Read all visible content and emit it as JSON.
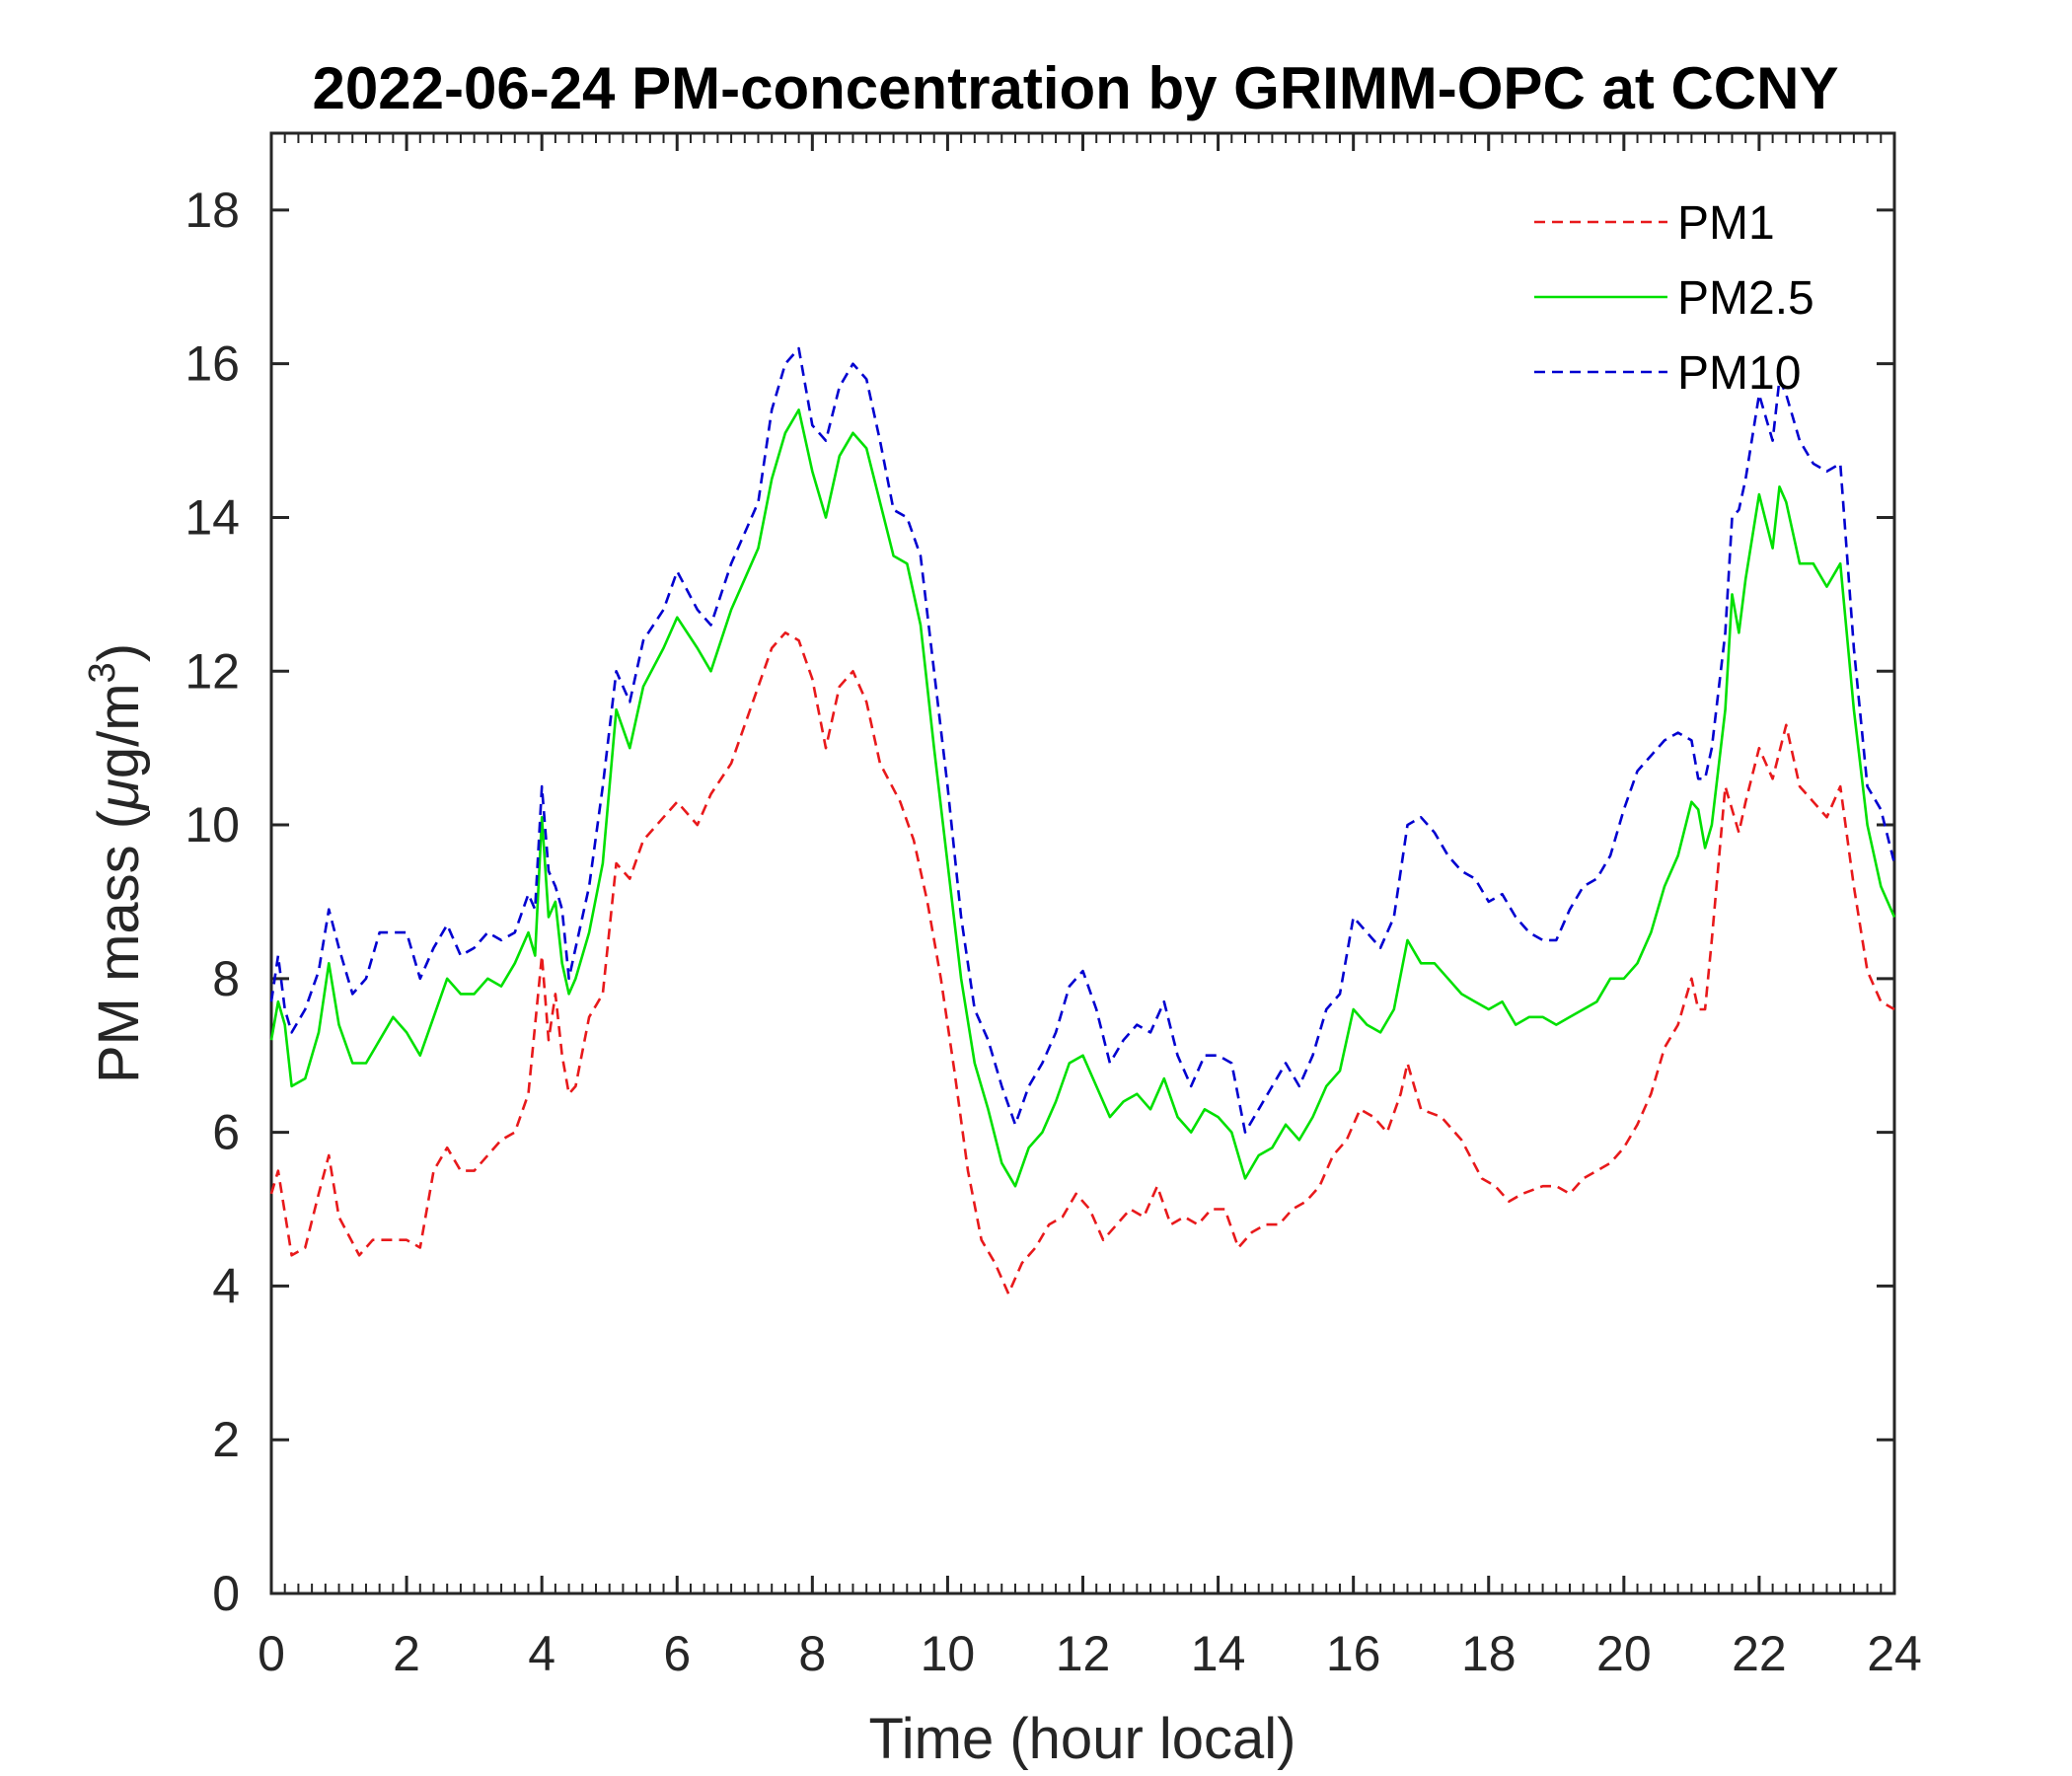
{
  "chart_data": {
    "type": "line",
    "title": "2022-06-24 PM-concentration by GRIMM-OPC at CCNY",
    "xlabel": "Time (hour local)",
    "ylabel_prefix": "PM mass (",
    "ylabel_mu": "μ",
    "ylabel_unit": "g/m",
    "ylabel_sup": "3",
    "ylabel_suffix": ")",
    "xlim": [
      0,
      24
    ],
    "ylim": [
      0,
      19
    ],
    "xticks": [
      0,
      2,
      4,
      6,
      8,
      10,
      12,
      14,
      16,
      18,
      20,
      22,
      24
    ],
    "yticks": [
      0,
      2,
      4,
      6,
      8,
      10,
      12,
      14,
      16,
      18
    ],
    "legend_position": "top-right",
    "series": [
      {
        "name": "PM1",
        "color": "#e8191b",
        "dash": "dashed",
        "x": [
          0,
          0.1,
          0.3,
          0.5,
          0.7,
          0.85,
          1.0,
          1.3,
          1.5,
          1.8,
          2.0,
          2.2,
          2.4,
          2.6,
          2.8,
          3.0,
          3.2,
          3.4,
          3.6,
          3.8,
          4.0,
          4.1,
          4.2,
          4.3,
          4.4,
          4.5,
          4.7,
          4.9,
          5.1,
          5.3,
          5.5,
          5.8,
          6.0,
          6.3,
          6.5,
          6.8,
          7.0,
          7.2,
          7.4,
          7.6,
          7.8,
          8.0,
          8.2,
          8.4,
          8.6,
          8.8,
          9.0,
          9.3,
          9.5,
          9.7,
          9.9,
          10.1,
          10.3,
          10.5,
          10.7,
          10.9,
          11.1,
          11.3,
          11.5,
          11.7,
          11.9,
          12.1,
          12.3,
          12.5,
          12.7,
          12.9,
          13.1,
          13.3,
          13.5,
          13.7,
          13.9,
          14.1,
          14.3,
          14.5,
          14.7,
          14.9,
          15.1,
          15.3,
          15.5,
          15.7,
          15.9,
          16.1,
          16.3,
          16.5,
          16.7,
          16.8,
          17.0,
          17.3,
          17.6,
          17.9,
          18.1,
          18.3,
          18.5,
          18.8,
          19.0,
          19.2,
          19.4,
          19.6,
          19.8,
          20.0,
          20.2,
          20.4,
          20.6,
          20.8,
          21.0,
          21.1,
          21.2,
          21.3,
          21.5,
          21.7,
          21.8,
          22.0,
          22.2,
          22.4,
          22.6,
          22.8,
          23.0,
          23.2,
          23.4,
          23.6,
          23.8,
          24.0
        ],
        "values": [
          5.2,
          5.5,
          4.4,
          4.5,
          5.2,
          5.7,
          4.9,
          4.4,
          4.6,
          4.6,
          4.6,
          4.5,
          5.5,
          5.8,
          5.5,
          5.5,
          5.7,
          5.9,
          6.0,
          6.5,
          8.3,
          7.2,
          7.8,
          7.0,
          6.5,
          6.6,
          7.5,
          7.8,
          9.5,
          9.3,
          9.8,
          10.1,
          10.3,
          10.0,
          10.4,
          10.8,
          11.3,
          11.8,
          12.3,
          12.5,
          12.4,
          11.9,
          11.0,
          11.8,
          12.0,
          11.6,
          10.8,
          10.3,
          9.8,
          9.0,
          8.0,
          6.8,
          5.5,
          4.6,
          4.3,
          3.9,
          4.3,
          4.5,
          4.8,
          4.9,
          5.2,
          5.0,
          4.6,
          4.8,
          5.0,
          4.9,
          5.3,
          4.8,
          4.9,
          4.8,
          5.0,
          5.0,
          4.5,
          4.7,
          4.8,
          4.8,
          5.0,
          5.1,
          5.3,
          5.7,
          5.9,
          6.3,
          6.2,
          6.0,
          6.5,
          6.9,
          6.3,
          6.2,
          5.9,
          5.4,
          5.3,
          5.1,
          5.2,
          5.3,
          5.3,
          5.2,
          5.4,
          5.5,
          5.6,
          5.8,
          6.1,
          6.5,
          7.1,
          7.4,
          8.0,
          7.6,
          7.6,
          8.5,
          10.5,
          9.9,
          10.3,
          11.0,
          10.6,
          11.3,
          10.5,
          10.3,
          10.1,
          10.5,
          9.2,
          8.1,
          7.7,
          7.6
        ]
      },
      {
        "name": "PM2.5",
        "color": "#00e000",
        "dash": "solid",
        "x": [
          0,
          0.1,
          0.2,
          0.3,
          0.5,
          0.7,
          0.85,
          1.0,
          1.2,
          1.4,
          1.6,
          1.8,
          2.0,
          2.2,
          2.4,
          2.6,
          2.8,
          3.0,
          3.2,
          3.4,
          3.6,
          3.8,
          3.9,
          4.0,
          4.1,
          4.2,
          4.3,
          4.4,
          4.5,
          4.7,
          4.9,
          5.1,
          5.3,
          5.5,
          5.8,
          6.0,
          6.3,
          6.5,
          6.8,
          7.0,
          7.2,
          7.4,
          7.6,
          7.8,
          8.0,
          8.2,
          8.4,
          8.6,
          8.8,
          9.0,
          9.2,
          9.4,
          9.6,
          9.8,
          10.0,
          10.2,
          10.4,
          10.6,
          10.8,
          11.0,
          11.2,
          11.4,
          11.6,
          11.8,
          12.0,
          12.2,
          12.4,
          12.6,
          12.8,
          13.0,
          13.2,
          13.4,
          13.6,
          13.8,
          14.0,
          14.2,
          14.4,
          14.6,
          14.8,
          15.0,
          15.2,
          15.4,
          15.6,
          15.8,
          16.0,
          16.2,
          16.4,
          16.6,
          16.8,
          17.0,
          17.2,
          17.4,
          17.6,
          17.8,
          18.0,
          18.2,
          18.4,
          18.6,
          18.8,
          19.0,
          19.2,
          19.4,
          19.6,
          19.8,
          20.0,
          20.2,
          20.4,
          20.6,
          20.8,
          21.0,
          21.1,
          21.2,
          21.3,
          21.5,
          21.6,
          21.7,
          21.8,
          22.0,
          22.2,
          22.3,
          22.4,
          22.6,
          22.8,
          23.0,
          23.2,
          23.4,
          23.6,
          23.8,
          24.0
        ],
        "values": [
          7.2,
          7.7,
          7.4,
          6.6,
          6.7,
          7.3,
          8.2,
          7.4,
          6.9,
          6.9,
          7.2,
          7.5,
          7.3,
          7.0,
          7.5,
          8.0,
          7.8,
          7.8,
          8.0,
          7.9,
          8.2,
          8.6,
          8.3,
          10.1,
          8.8,
          9.0,
          8.2,
          7.8,
          8.0,
          8.6,
          9.5,
          11.5,
          11.0,
          11.8,
          12.3,
          12.7,
          12.3,
          12.0,
          12.8,
          13.2,
          13.6,
          14.5,
          15.1,
          15.4,
          14.6,
          14.0,
          14.8,
          15.1,
          14.9,
          14.2,
          13.5,
          13.4,
          12.6,
          11.0,
          9.5,
          8.0,
          6.9,
          6.3,
          5.6,
          5.3,
          5.8,
          6.0,
          6.4,
          6.9,
          7.0,
          6.6,
          6.2,
          6.4,
          6.5,
          6.3,
          6.7,
          6.2,
          6.0,
          6.3,
          6.2,
          6.0,
          5.4,
          5.7,
          5.8,
          6.1,
          5.9,
          6.2,
          6.6,
          6.8,
          7.6,
          7.4,
          7.3,
          7.6,
          8.5,
          8.2,
          8.2,
          8.0,
          7.8,
          7.7,
          7.6,
          7.7,
          7.4,
          7.5,
          7.5,
          7.4,
          7.5,
          7.6,
          7.7,
          8.0,
          8.0,
          8.2,
          8.6,
          9.2,
          9.6,
          10.3,
          10.2,
          9.7,
          10.0,
          11.5,
          13.0,
          12.5,
          13.2,
          14.3,
          13.6,
          14.4,
          14.2,
          13.4,
          13.4,
          13.1,
          13.4,
          11.5,
          10.0,
          9.2,
          8.8
        ]
      },
      {
        "name": "PM10",
        "color": "#0000d0",
        "dash": "dashed",
        "x": [
          0,
          0.1,
          0.2,
          0.3,
          0.5,
          0.7,
          0.85,
          1.0,
          1.2,
          1.4,
          1.6,
          1.8,
          2.0,
          2.2,
          2.4,
          2.6,
          2.8,
          3.0,
          3.2,
          3.4,
          3.6,
          3.8,
          3.9,
          4.0,
          4.1,
          4.2,
          4.3,
          4.4,
          4.5,
          4.7,
          4.9,
          5.1,
          5.3,
          5.5,
          5.8,
          6.0,
          6.3,
          6.5,
          6.8,
          7.0,
          7.2,
          7.4,
          7.6,
          7.8,
          8.0,
          8.2,
          8.4,
          8.6,
          8.8,
          9.0,
          9.2,
          9.4,
          9.6,
          9.8,
          10.0,
          10.2,
          10.4,
          10.6,
          10.8,
          11.0,
          11.2,
          11.4,
          11.6,
          11.8,
          12.0,
          12.2,
          12.4,
          12.6,
          12.8,
          13.0,
          13.2,
          13.4,
          13.6,
          13.8,
          14.0,
          14.2,
          14.4,
          14.6,
          14.8,
          15.0,
          15.2,
          15.4,
          15.6,
          15.8,
          16.0,
          16.2,
          16.4,
          16.6,
          16.8,
          17.0,
          17.2,
          17.4,
          17.6,
          17.8,
          18.0,
          18.2,
          18.4,
          18.6,
          18.8,
          19.0,
          19.2,
          19.4,
          19.6,
          19.8,
          20.0,
          20.2,
          20.4,
          20.6,
          20.8,
          21.0,
          21.1,
          21.2,
          21.3,
          21.5,
          21.6,
          21.7,
          21.8,
          22.0,
          22.2,
          22.3,
          22.4,
          22.6,
          22.8,
          23.0,
          23.2,
          23.4,
          23.6,
          23.8,
          24.0
        ],
        "values": [
          7.7,
          8.3,
          7.6,
          7.3,
          7.6,
          8.1,
          8.9,
          8.4,
          7.8,
          8.0,
          8.6,
          8.6,
          8.6,
          8.0,
          8.4,
          8.7,
          8.3,
          8.4,
          8.6,
          8.5,
          8.6,
          9.1,
          8.9,
          10.5,
          9.4,
          9.2,
          8.9,
          8.0,
          8.4,
          9.2,
          10.5,
          12.0,
          11.6,
          12.4,
          12.8,
          13.3,
          12.8,
          12.6,
          13.4,
          13.8,
          14.2,
          15.4,
          16.0,
          16.2,
          15.2,
          15.0,
          15.7,
          16.0,
          15.8,
          15.0,
          14.1,
          14.0,
          13.5,
          12.0,
          10.5,
          8.8,
          7.6,
          7.2,
          6.6,
          6.1,
          6.6,
          6.9,
          7.3,
          7.9,
          8.1,
          7.6,
          6.9,
          7.2,
          7.4,
          7.3,
          7.7,
          7.0,
          6.6,
          7.0,
          7.0,
          6.9,
          6.0,
          6.3,
          6.6,
          6.9,
          6.6,
          7.0,
          7.6,
          7.8,
          8.8,
          8.6,
          8.4,
          8.8,
          10.0,
          10.1,
          9.9,
          9.6,
          9.4,
          9.3,
          9.0,
          9.1,
          8.8,
          8.6,
          8.5,
          8.5,
          8.9,
          9.2,
          9.3,
          9.6,
          10.2,
          10.7,
          10.9,
          11.1,
          11.2,
          11.1,
          10.6,
          10.6,
          11.0,
          12.5,
          14.0,
          14.1,
          14.5,
          15.6,
          15.0,
          15.8,
          15.6,
          15.0,
          14.7,
          14.6,
          14.7,
          12.3,
          10.5,
          10.2,
          9.5
        ]
      }
    ]
  }
}
